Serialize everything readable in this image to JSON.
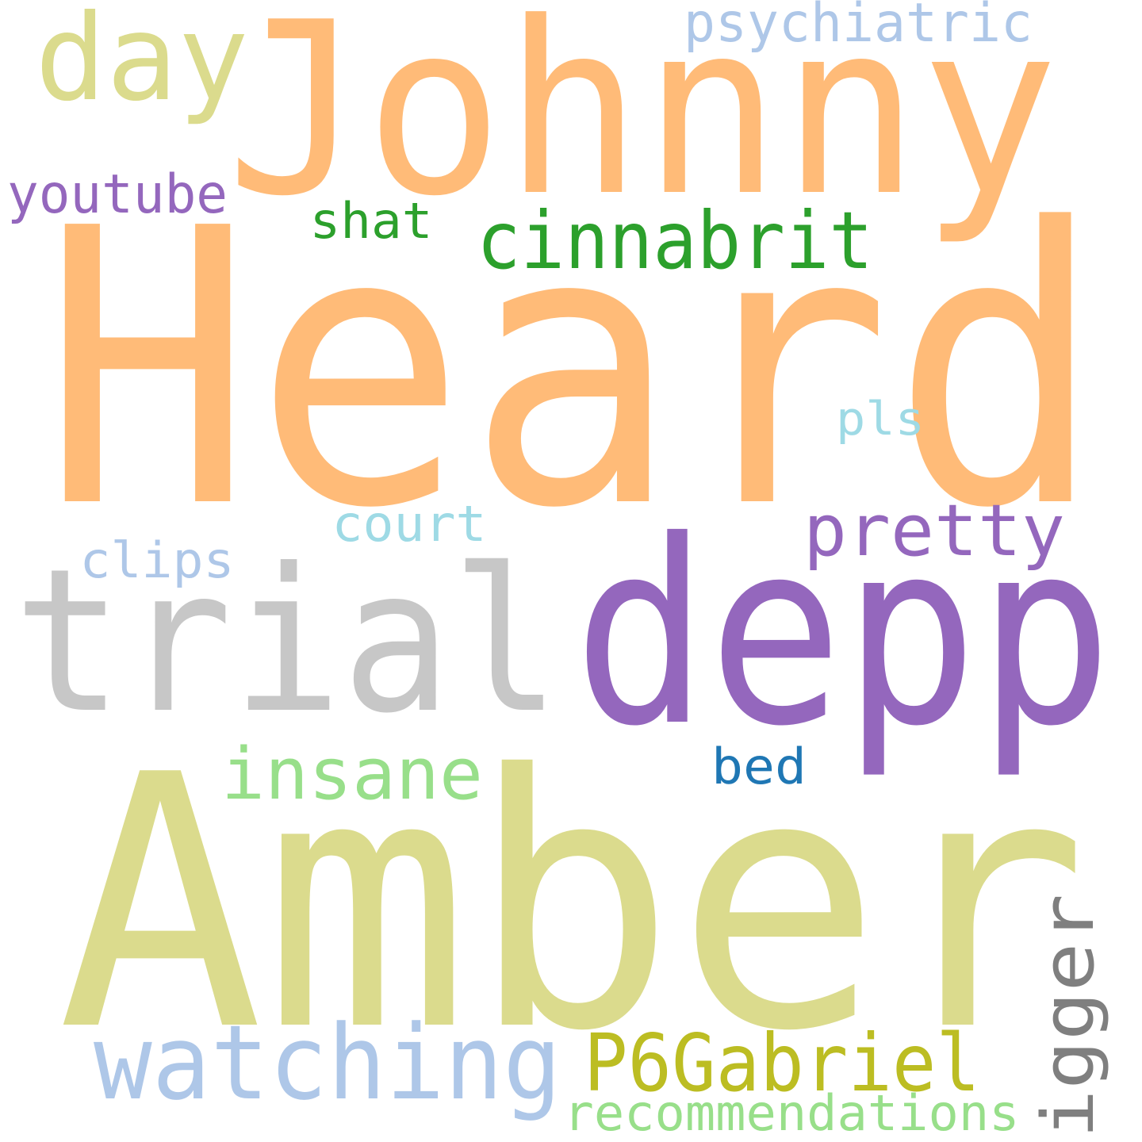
{
  "words": [
    {
      "text": "Heard",
      "color": "#ffbb78"
    },
    {
      "text": "Johnny",
      "color": "#ffbb78"
    },
    {
      "text": "Amber",
      "color": "#dbdb8d"
    },
    {
      "text": "depp",
      "color": "#9467bd"
    },
    {
      "text": "trial",
      "color": "#c7c7c7"
    },
    {
      "text": "day",
      "color": "#dbdb8d"
    },
    {
      "text": "watching",
      "color": "#aec7e8"
    },
    {
      "text": "cinnabrit",
      "color": "#2ca02c"
    },
    {
      "text": "P6Gabriel",
      "color": "#bcbd22"
    },
    {
      "text": "insane",
      "color": "#98df8a"
    },
    {
      "text": "pretty",
      "color": "#9467bd"
    },
    {
      "text": "bigger",
      "color": "#7f7f7f"
    },
    {
      "text": "psychiatric",
      "color": "#aec7e8"
    },
    {
      "text": "youtube",
      "color": "#9467bd"
    },
    {
      "text": "recommendations",
      "color": "#98df8a"
    },
    {
      "text": "court",
      "color": "#9edae5"
    },
    {
      "text": "clips",
      "color": "#aec7e8"
    },
    {
      "text": "shat",
      "color": "#2ca02c"
    },
    {
      "text": "bed",
      "color": "#1f77b4"
    },
    {
      "text": "pls",
      "color": "#9edae5"
    }
  ]
}
